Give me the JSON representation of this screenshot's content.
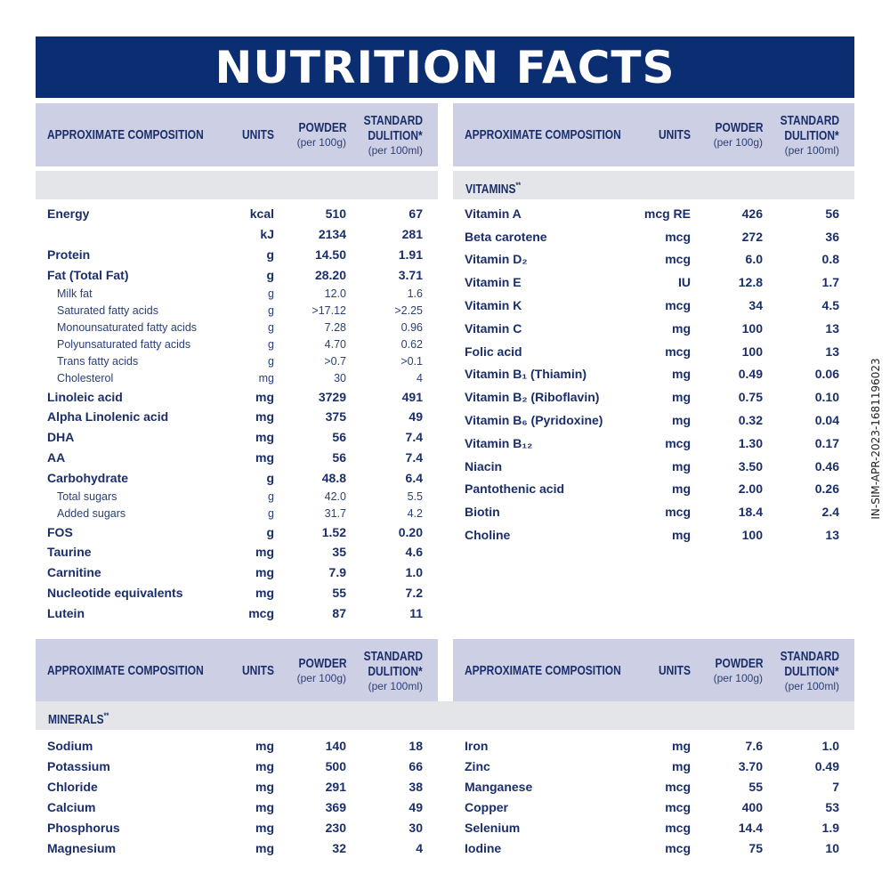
{
  "title": "NUTRITION FACTS",
  "colors": {
    "banner": "#0b2d72",
    "header_bg": "#cdd0e4",
    "band_bg": "#e3e5e8",
    "text": "#1a2e6b"
  },
  "header": {
    "composition": "APPROXIMATE COMPOSITION",
    "units": "UNITS",
    "powder": "POWDER",
    "powder_sub": "(per 100g)",
    "dilution_1": "STANDARD",
    "dilution_2": "DULITION*",
    "dilution_sub": "(per 100ml)"
  },
  "side_code": "IN-SIM-APR-2023-1681196023",
  "sections": {
    "general": {
      "label": "",
      "rows": [
        {
          "name": "Energy",
          "unit": "kcal",
          "powder": "510",
          "dilution": "67",
          "sub": false
        },
        {
          "name": "",
          "unit": "kJ",
          "powder": "2134",
          "dilution": "281",
          "sub": false
        },
        {
          "name": "Protein",
          "unit": "g",
          "powder": "14.50",
          "dilution": "1.91",
          "sub": false
        },
        {
          "name": "Fat (Total Fat)",
          "unit": "g",
          "powder": "28.20",
          "dilution": "3.71",
          "sub": false
        },
        {
          "name": "Milk fat",
          "unit": "g",
          "powder": "12.0",
          "dilution": "1.6",
          "sub": true
        },
        {
          "name": "Saturated fatty acids",
          "unit": "g",
          "powder": ">17.12",
          "dilution": ">2.25",
          "sub": true
        },
        {
          "name": "Monounsaturated fatty acids",
          "unit": "g",
          "powder": "7.28",
          "dilution": "0.96",
          "sub": true
        },
        {
          "name": "Polyunsaturated fatty acids",
          "unit": "g",
          "powder": "4.70",
          "dilution": "0.62",
          "sub": true
        },
        {
          "name": "Trans fatty acids",
          "unit": "g",
          "powder": ">0.7",
          "dilution": ">0.1",
          "sub": true
        },
        {
          "name": "Cholesterol",
          "unit": "mg",
          "powder": "30",
          "dilution": "4",
          "sub": true
        },
        {
          "name": "Linoleic acid",
          "unit": "mg",
          "powder": "3729",
          "dilution": "491",
          "sub": false
        },
        {
          "name": "Alpha Linolenic acid",
          "unit": "mg",
          "powder": "375",
          "dilution": "49",
          "sub": false
        },
        {
          "name": "DHA",
          "unit": "mg",
          "powder": "56",
          "dilution": "7.4",
          "sub": false
        },
        {
          "name": "AA",
          "unit": "mg",
          "powder": "56",
          "dilution": "7.4",
          "sub": false
        },
        {
          "name": "Carbohydrate",
          "unit": "g",
          "powder": "48.8",
          "dilution": "6.4",
          "sub": false
        },
        {
          "name": "Total sugars",
          "unit": "g",
          "powder": "42.0",
          "dilution": "5.5",
          "sub": true
        },
        {
          "name": "Added sugars",
          "unit": "g",
          "powder": "31.7",
          "dilution": "4.2",
          "sub": true
        },
        {
          "name": "FOS",
          "unit": "g",
          "powder": "1.52",
          "dilution": "0.20",
          "sub": false
        },
        {
          "name": "Taurine",
          "unit": "mg",
          "powder": "35",
          "dilution": "4.6",
          "sub": false
        },
        {
          "name": "Carnitine",
          "unit": "mg",
          "powder": "7.9",
          "dilution": "1.0",
          "sub": false
        },
        {
          "name": "Nucleotide equivalents",
          "unit": "mg",
          "powder": "55",
          "dilution": "7.2",
          "sub": false
        },
        {
          "name": "Lutein",
          "unit": "mcg",
          "powder": "87",
          "dilution": "11",
          "sub": false
        }
      ]
    },
    "vitamins": {
      "label": "VITAMINS",
      "label_mark": "**",
      "rows": [
        {
          "name": "Vitamin A",
          "unit": "mcg RE",
          "powder": "426",
          "dilution": "56"
        },
        {
          "name": "Beta carotene",
          "unit": "mcg",
          "powder": "272",
          "dilution": "36"
        },
        {
          "name": "Vitamin D₂",
          "unit": "mcg",
          "powder": "6.0",
          "dilution": "0.8"
        },
        {
          "name": "Vitamin E",
          "unit": "IU",
          "powder": "12.8",
          "dilution": "1.7"
        },
        {
          "name": "Vitamin K",
          "unit": "mcg",
          "powder": "34",
          "dilution": "4.5"
        },
        {
          "name": "Vitamin C",
          "unit": "mg",
          "powder": "100",
          "dilution": "13"
        },
        {
          "name": "Folic acid",
          "unit": "mcg",
          "powder": "100",
          "dilution": "13"
        },
        {
          "name": "Vitamin B₁ (Thiamin)",
          "unit": "mg",
          "powder": "0.49",
          "dilution": "0.06"
        },
        {
          "name": "Vitamin B₂ (Riboflavin)",
          "unit": "mg",
          "powder": "0.75",
          "dilution": "0.10"
        },
        {
          "name": "Vitamin B₆ (Pyridoxine)",
          "unit": "mg",
          "powder": "0.32",
          "dilution": "0.04"
        },
        {
          "name": "Vitamin B₁₂",
          "unit": "mcg",
          "powder": "1.30",
          "dilution": "0.17"
        },
        {
          "name": "Niacin",
          "unit": "mg",
          "powder": "3.50",
          "dilution": "0.46"
        },
        {
          "name": "Pantothenic acid",
          "unit": "mg",
          "powder": "2.00",
          "dilution": "0.26"
        },
        {
          "name": "Biotin",
          "unit": "mcg",
          "powder": "18.4",
          "dilution": "2.4"
        },
        {
          "name": "Choline",
          "unit": "mg",
          "powder": "100",
          "dilution": "13"
        }
      ]
    },
    "minerals_left": {
      "label": "MINERALS",
      "label_mark": "**",
      "rows": [
        {
          "name": "Sodium",
          "unit": "mg",
          "powder": "140",
          "dilution": "18"
        },
        {
          "name": "Potassium",
          "unit": "mg",
          "powder": "500",
          "dilution": "66"
        },
        {
          "name": "Chloride",
          "unit": "mg",
          "powder": "291",
          "dilution": "38"
        },
        {
          "name": "Calcium",
          "unit": "mg",
          "powder": "369",
          "dilution": "49"
        },
        {
          "name": "Phosphorus",
          "unit": "mg",
          "powder": "230",
          "dilution": "30"
        },
        {
          "name": "Magnesium",
          "unit": "mg",
          "powder": "32",
          "dilution": "4"
        }
      ]
    },
    "minerals_right": {
      "rows": [
        {
          "name": "Iron",
          "unit": "mg",
          "powder": "7.6",
          "dilution": "1.0"
        },
        {
          "name": "Zinc",
          "unit": "mg",
          "powder": "3.70",
          "dilution": "0.49"
        },
        {
          "name": "Manganese",
          "unit": "mcg",
          "powder": "55",
          "dilution": "7"
        },
        {
          "name": "Copper",
          "unit": "mcg",
          "powder": "400",
          "dilution": "53"
        },
        {
          "name": "Selenium",
          "unit": "mcg",
          "powder": "14.4",
          "dilution": "1.9"
        },
        {
          "name": "Iodine",
          "unit": "mcg",
          "powder": "75",
          "dilution": "10"
        }
      ]
    }
  }
}
